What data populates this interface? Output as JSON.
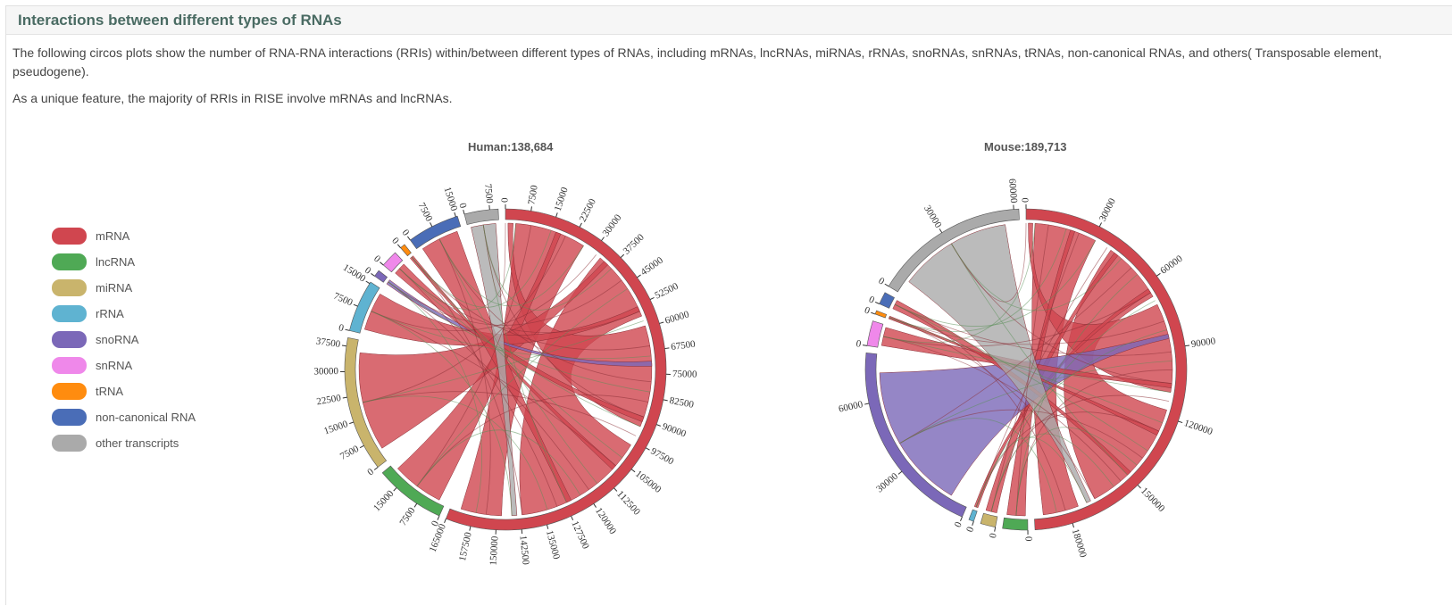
{
  "header": {
    "title": "Interactions between different types of RNAs"
  },
  "description": {
    "paragraph1": "The following circos plots show the number of RNA-RNA interactions (RRIs) within/between different types of RNAs,  including mRNAs, lncRNAs, miRNAs, rRNAs, snoRNAs, snRNAs, tRNAs, non-canonical RNAs, and others( Transposable element, pseudogene).",
    "paragraph2": "As a unique feature, the majority of RRIs in RISE involve mRNAs and lncRNAs."
  },
  "legend": [
    {
      "label": "mRNA",
      "color": "#d0464f"
    },
    {
      "label": "lncRNA",
      "color": "#4fa955"
    },
    {
      "label": "miRNA",
      "color": "#c9b46c"
    },
    {
      "label": "rRNA",
      "color": "#5fb3d1"
    },
    {
      "label": "snoRNA",
      "color": "#7b68b8"
    },
    {
      "label": "snRNA",
      "color": "#ef88ea"
    },
    {
      "label": "tRNA",
      "color": "#ff8c0f"
    },
    {
      "label": "non-canonical RNA",
      "color": "#4a6db7"
    },
    {
      "label": "other transcripts",
      "color": "#aaaaaa"
    }
  ],
  "chart_data": [
    {
      "type": "chord",
      "title": "Human:138,684",
      "segments": [
        {
          "category": "mRNA",
          "range": [
            0,
            165000
          ],
          "ticks": [
            0,
            7500,
            15000,
            22500,
            30000,
            37500,
            45000,
            52500,
            60000,
            67500,
            75000,
            82500,
            90000,
            97500,
            105000,
            112500,
            120000,
            127500,
            135000,
            142500,
            150000,
            157500,
            165000
          ]
        },
        {
          "category": "lncRNA",
          "range": [
            0,
            21000
          ],
          "ticks": [
            0,
            7500,
            15000
          ]
        },
        {
          "category": "miRNA",
          "range": [
            0,
            40000
          ],
          "ticks": [
            0,
            7500,
            15000,
            22500,
            30000,
            37500
          ]
        },
        {
          "category": "rRNA",
          "range": [
            0,
            15500
          ],
          "ticks": [
            0,
            7500,
            15000
          ]
        },
        {
          "category": "snoRNA",
          "range": [
            0,
            2000
          ],
          "ticks": [
            0
          ]
        },
        {
          "category": "snRNA",
          "range": [
            0,
            5000
          ],
          "ticks": [
            0
          ]
        },
        {
          "category": "tRNA",
          "range": [
            0,
            1500
          ],
          "ticks": [
            0
          ]
        },
        {
          "category": "non-canonical RNA",
          "range": [
            0,
            15500
          ],
          "ticks": [
            0,
            7500,
            15000
          ]
        },
        {
          "category": "other transcripts",
          "range": [
            0,
            10000
          ],
          "ticks": [
            0,
            7500
          ]
        }
      ]
    },
    {
      "type": "chord",
      "title": "Mouse:189,713",
      "segments": [
        {
          "category": "mRNA",
          "range": [
            0,
            195000
          ],
          "ticks": [
            0,
            30000,
            60000,
            90000,
            120000,
            150000,
            180000
          ]
        },
        {
          "category": "lncRNA",
          "range": [
            0,
            10000
          ],
          "ticks": [
            0
          ]
        },
        {
          "category": "miRNA",
          "range": [
            0,
            6000
          ],
          "ticks": [
            0
          ]
        },
        {
          "category": "rRNA",
          "range": [
            0,
            2000
          ],
          "ticks": [
            0
          ]
        },
        {
          "category": "snoRNA",
          "range": [
            0,
            80000
          ],
          "ticks": [
            0,
            30000,
            60000
          ]
        },
        {
          "category": "snRNA",
          "range": [
            0,
            10000
          ],
          "ticks": [
            0
          ]
        },
        {
          "category": "tRNA",
          "range": [
            0,
            1500
          ],
          "ticks": [
            0
          ]
        },
        {
          "category": "non-canonical RNA",
          "range": [
            0,
            5000
          ],
          "ticks": [
            0
          ]
        },
        {
          "category": "other transcripts",
          "range": [
            0,
            62000
          ],
          "ticks": [
            0,
            30000,
            60000
          ]
        }
      ]
    }
  ]
}
